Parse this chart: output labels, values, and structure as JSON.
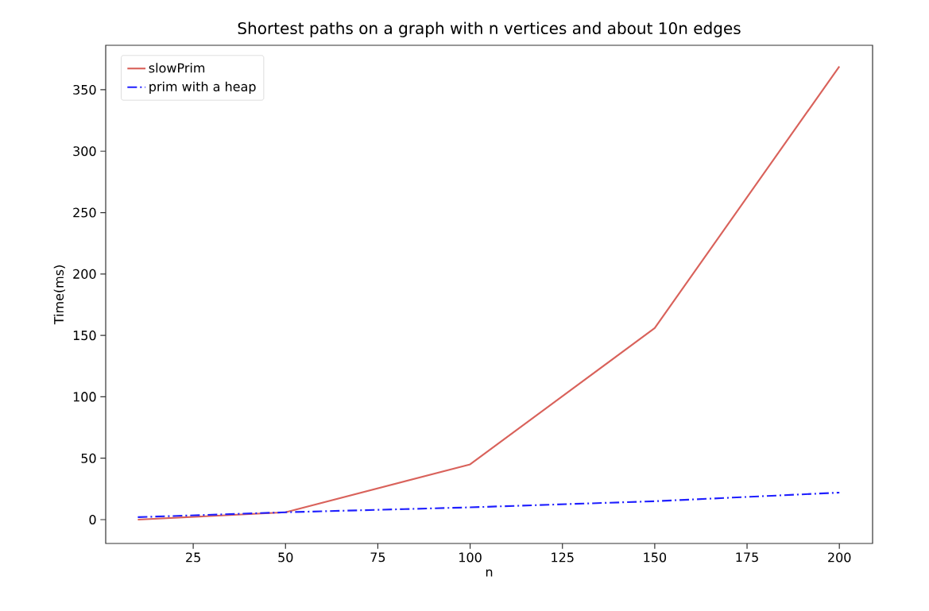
{
  "chart_data": {
    "type": "line",
    "title": "Shortest paths on a graph with n vertices and about 10n edges",
    "xlabel": "n",
    "ylabel": "Time(ms)",
    "x": [
      10,
      50,
      100,
      150,
      200
    ],
    "series": [
      {
        "name": "slowPrim",
        "color": "#d9625b",
        "line_style": "solid",
        "values": [
          0,
          6,
          45,
          156,
          369
        ]
      },
      {
        "name": "prim with a heap",
        "color": "#1f1fff",
        "line_style": "dashdot",
        "values": [
          2,
          6,
          10,
          15,
          22
        ]
      }
    ],
    "xlim": [
      1.3,
      209
    ],
    "ylim": [
      -19.4,
      386.2
    ],
    "xticks": [
      25,
      50,
      75,
      100,
      125,
      150,
      175,
      200
    ],
    "yticks": [
      0,
      50,
      100,
      150,
      200,
      250,
      300,
      350
    ],
    "grid": false,
    "legend": "top left",
    "marker": "none"
  }
}
